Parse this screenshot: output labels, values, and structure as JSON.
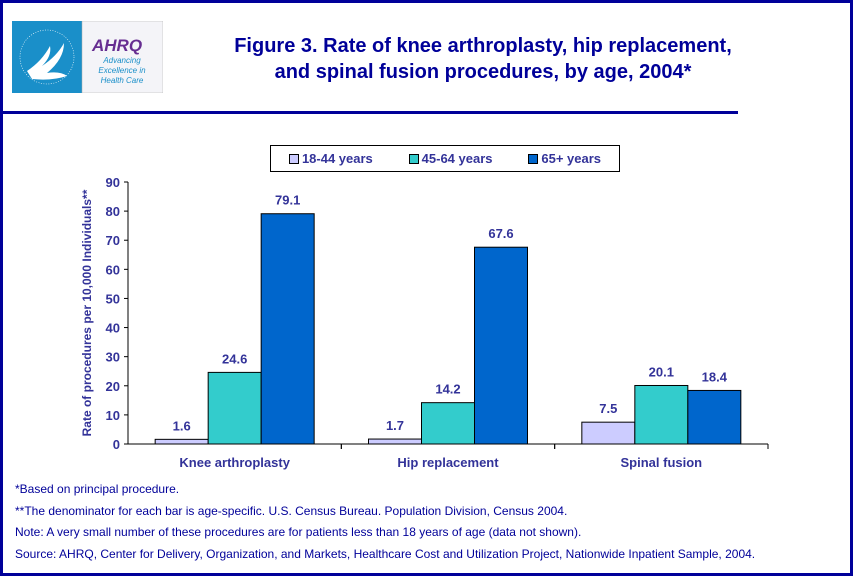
{
  "header": {
    "title_line1": "Figure 3. Rate of knee arthroplasty, hip replacement,",
    "title_line2": "and spinal fusion procedures, by age, 2004*",
    "logo_text": [
      "AHRQ",
      "Advancing",
      "Excellence in",
      "Health Care"
    ]
  },
  "colors": {
    "frame": "#000099",
    "text": "#333399",
    "series": [
      "#ccccff",
      "#33cccc",
      "#0066cc"
    ]
  },
  "chart_data": {
    "type": "bar",
    "categories": [
      "Knee arthroplasty",
      "Hip replacement",
      "Spinal fusion"
    ],
    "series": [
      {
        "name": "18-44 years",
        "values": [
          1.6,
          1.7,
          7.5
        ]
      },
      {
        "name": "45-64 years",
        "values": [
          24.6,
          14.2,
          20.1
        ]
      },
      {
        "name": "65+ years",
        "values": [
          79.1,
          67.6,
          18.4
        ]
      }
    ],
    "ylabel": "Rate of procedures per 10,000 Individuals**",
    "ylim": [
      0,
      90
    ],
    "yticks": [
      0,
      10,
      20,
      30,
      40,
      50,
      60,
      70,
      80,
      90
    ],
    "grid": false,
    "legend": "top"
  },
  "notes": [
    "*Based on principal procedure.",
    "**The denominator for each bar is age-specific. U.S. Census Bureau. Population Division, Census 2004.",
    "Note: A very small number of these procedures are for patients less than 18 years of age (data not shown).",
    "Source: AHRQ, Center for Delivery, Organization, and Markets, Healthcare Cost and Utilization Project, Nationwide Inpatient Sample, 2004."
  ]
}
